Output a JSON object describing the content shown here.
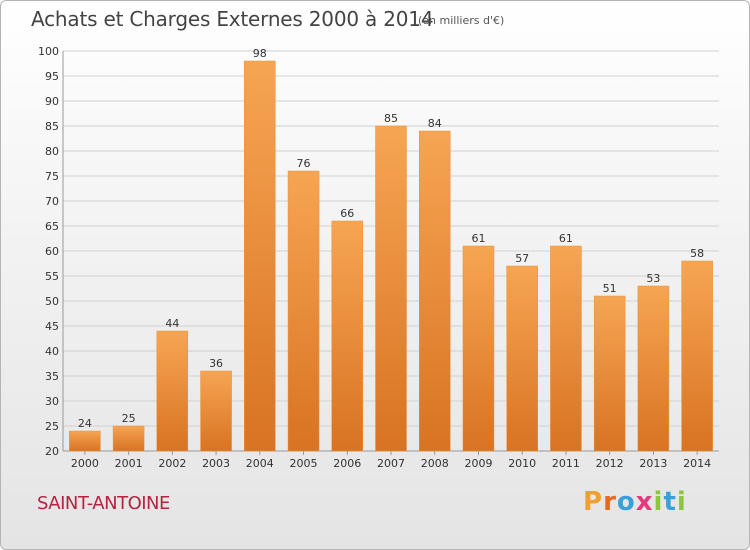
{
  "header": {
    "title": "Achats et Charges Externes 2000 à 2014",
    "unit_note": "(en milliers d'€)"
  },
  "footer": {
    "commune": "SAINT-ANTOINE",
    "brand": [
      "P",
      "r",
      "o",
      "x",
      "i",
      "t",
      "i"
    ]
  },
  "colors": {
    "bar_top": "#f6a553",
    "bar_bottom": "#d87322",
    "commune": "#b3243f",
    "brand": [
      "#f0a030",
      "#e46a1e",
      "#3aa0d8",
      "#e23a7a",
      "#8cc63f",
      "#3aa0d8",
      "#8cc63f"
    ]
  },
  "chart_data": {
    "type": "bar",
    "title": "Achats et Charges Externes 2000 à 2014",
    "subtitle": "(en milliers d'€)",
    "categories": [
      "2000",
      "2001",
      "2002",
      "2003",
      "2004",
      "2005",
      "2006",
      "2007",
      "2008",
      "2009",
      "2010",
      "2011",
      "2012",
      "2013",
      "2014"
    ],
    "values": [
      24,
      25,
      44,
      36,
      98,
      76,
      66,
      85,
      84,
      61,
      57,
      61,
      51,
      53,
      58
    ],
    "ylim": [
      20,
      100
    ],
    "yticks": [
      20,
      25,
      30,
      35,
      40,
      45,
      50,
      55,
      60,
      65,
      70,
      75,
      80,
      85,
      90,
      95,
      100
    ],
    "grid": true,
    "data_labels": true
  }
}
